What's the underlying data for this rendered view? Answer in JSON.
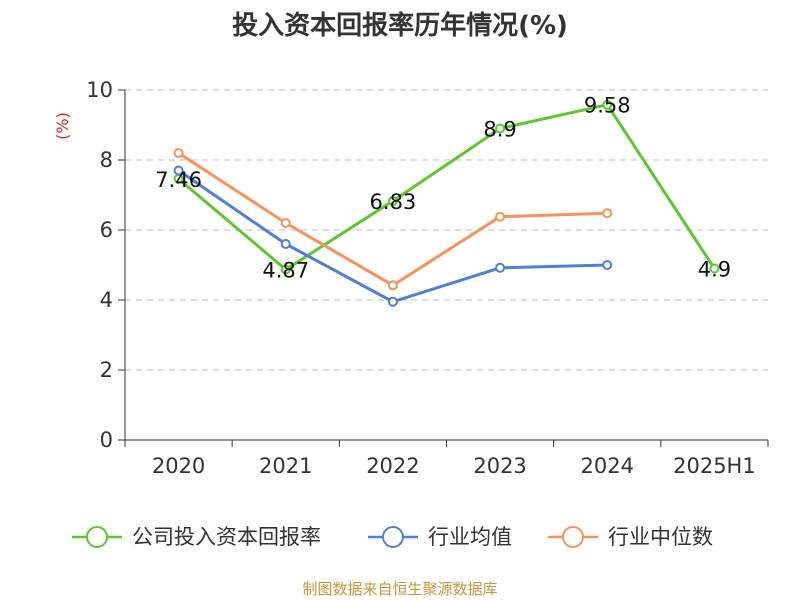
{
  "chart_data": {
    "type": "line",
    "title": "投入资本回报率历年情况(%)",
    "ylabel": "(%)",
    "xlabel": "",
    "categories": [
      "2020",
      "2021",
      "2022",
      "2023",
      "2024",
      "2025H1"
    ],
    "ylim": [
      0,
      10
    ],
    "yticks": [
      0,
      2,
      4,
      6,
      8,
      10
    ],
    "grid": true,
    "legend_position": "bottom",
    "series": [
      {
        "name": "公司投入资本回报率",
        "color": "#5cc82a",
        "values": [
          7.46,
          4.87,
          6.83,
          8.9,
          9.58,
          4.9
        ],
        "labels": [
          "7.46",
          "4.87",
          "6.83",
          "8.9",
          "9.58",
          "4.9"
        ]
      },
      {
        "name": "行业均值",
        "color": "#4f7fd9",
        "values": [
          7.7,
          5.6,
          3.95,
          4.92,
          5.0,
          null
        ]
      },
      {
        "name": "行业中位数",
        "color": "#f79259",
        "values": [
          8.2,
          6.2,
          4.42,
          6.38,
          6.48,
          null
        ]
      }
    ]
  },
  "source": "制图数据来自恒生聚源数据库"
}
